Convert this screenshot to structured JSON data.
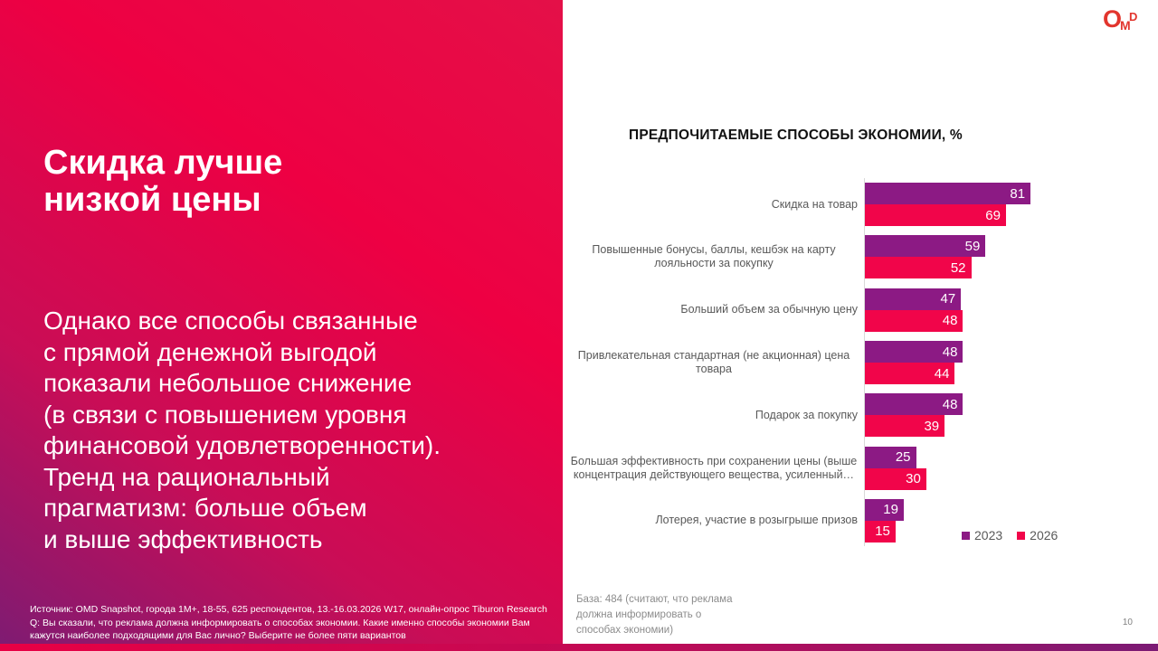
{
  "slide": {
    "page_number": "10",
    "logo": {
      "letter_o": "O",
      "letter_m": "M",
      "letter_d": "D"
    }
  },
  "left_panel": {
    "heading": "Скидка лучше\nнизкой цены",
    "body": "Однако все способы связанные\nс прямой денежной выгодой\nпоказали небольшое снижение\n(в связи с повышением уровня\nфинансовой удовлетворенности).\nТренд на рациональный\nпрагматизм: больше объем\nи выше эффективность",
    "footnote": "Источник: OMD Snapshot, города 1М+, 18-55, 625  респондентов, 13.-16.03.2026 W17, онлайн-опрос Tiburon Research\nQ: Вы сказали, что реклама должна информировать о способах экономии. Какие именно способы экономии Вам\nкажутся наиболее подходящими для Вас лично? Выберите не более пяти вариантов"
  },
  "chart_data": {
    "type": "bar",
    "orientation": "horizontal",
    "title": "ПРЕДПОЧИТАЕМЫЕ СПОСОБЫ ЭКОНОМИИ, %",
    "categories": [
      "Скидка на товар",
      "Повышенные бонусы, баллы, кешбэк на карту лояльности за покупку",
      "Больший объем за обычную цену",
      "Привлекательная стандартная (не акционная) цена товара",
      "Подарок за покупку",
      "Большая эффективность при сохранении цены (выше концентрация действующего вещества, усиленный…",
      "Лотерея, участие в розыгрыше призов"
    ],
    "series": [
      {
        "name": "2023",
        "color": "#8c1a84",
        "values": [
          81,
          59,
          47,
          48,
          48,
          25,
          19
        ]
      },
      {
        "name": "2026",
        "color": "#f1054a",
        "values": [
          69,
          52,
          48,
          44,
          39,
          30,
          15
        ]
      }
    ],
    "xlim": [
      0,
      100
    ],
    "grid": false,
    "legend_position": "bottom-right",
    "base_note": "База: 484 (считают, что реклама\nдолжна информировать о\nспособах экономии)"
  },
  "colors": {
    "panel_gradient_start": "#ee0043",
    "panel_gradient_end": "#7f1b72",
    "axis_line": "#d9d9d9",
    "label_gray": "#595959",
    "note_gray": "#8c8c8c",
    "logo_red": "#e2352d"
  }
}
